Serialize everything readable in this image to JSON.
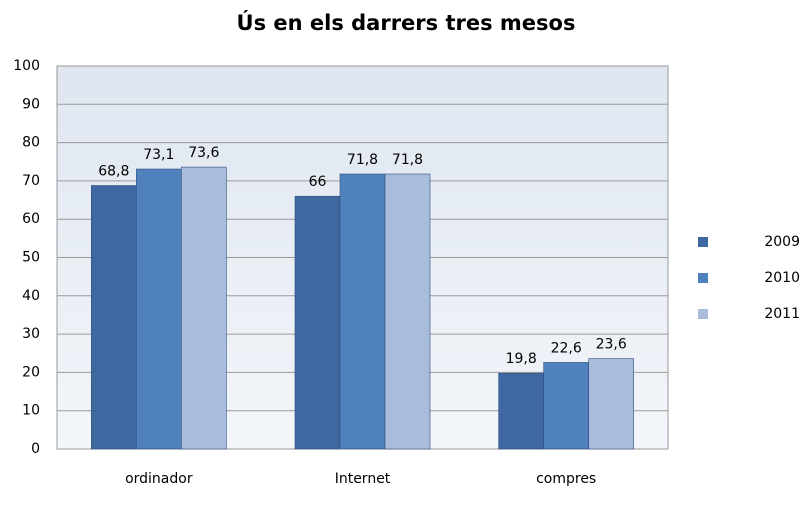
{
  "chart_data": {
    "type": "bar",
    "title": "Ús en els darrers tres mesos",
    "categories": [
      "ordinador",
      "Internet",
      "compres"
    ],
    "series": [
      {
        "name": "2009",
        "color": "#3f67a0",
        "values": [
          68.8,
          66,
          19.8
        ],
        "value_labels": [
          "68,8",
          "66",
          "19,8"
        ]
      },
      {
        "name": "2010",
        "color": "#4f81bd",
        "values": [
          73.1,
          71.8,
          22.6
        ],
        "value_labels": [
          "73,1",
          "71,8",
          "22,6"
        ]
      },
      {
        "name": "2011",
        "color": "#a9bcdc",
        "values": [
          73.6,
          71.8,
          23.6
        ],
        "value_labels": [
          "73,6",
          "71,8",
          "23,6"
        ]
      }
    ],
    "ylim": [
      0,
      100
    ],
    "yticks": [
      0,
      10,
      20,
      30,
      40,
      50,
      60,
      70,
      80,
      90,
      100
    ],
    "grid": true,
    "legend": "right"
  }
}
